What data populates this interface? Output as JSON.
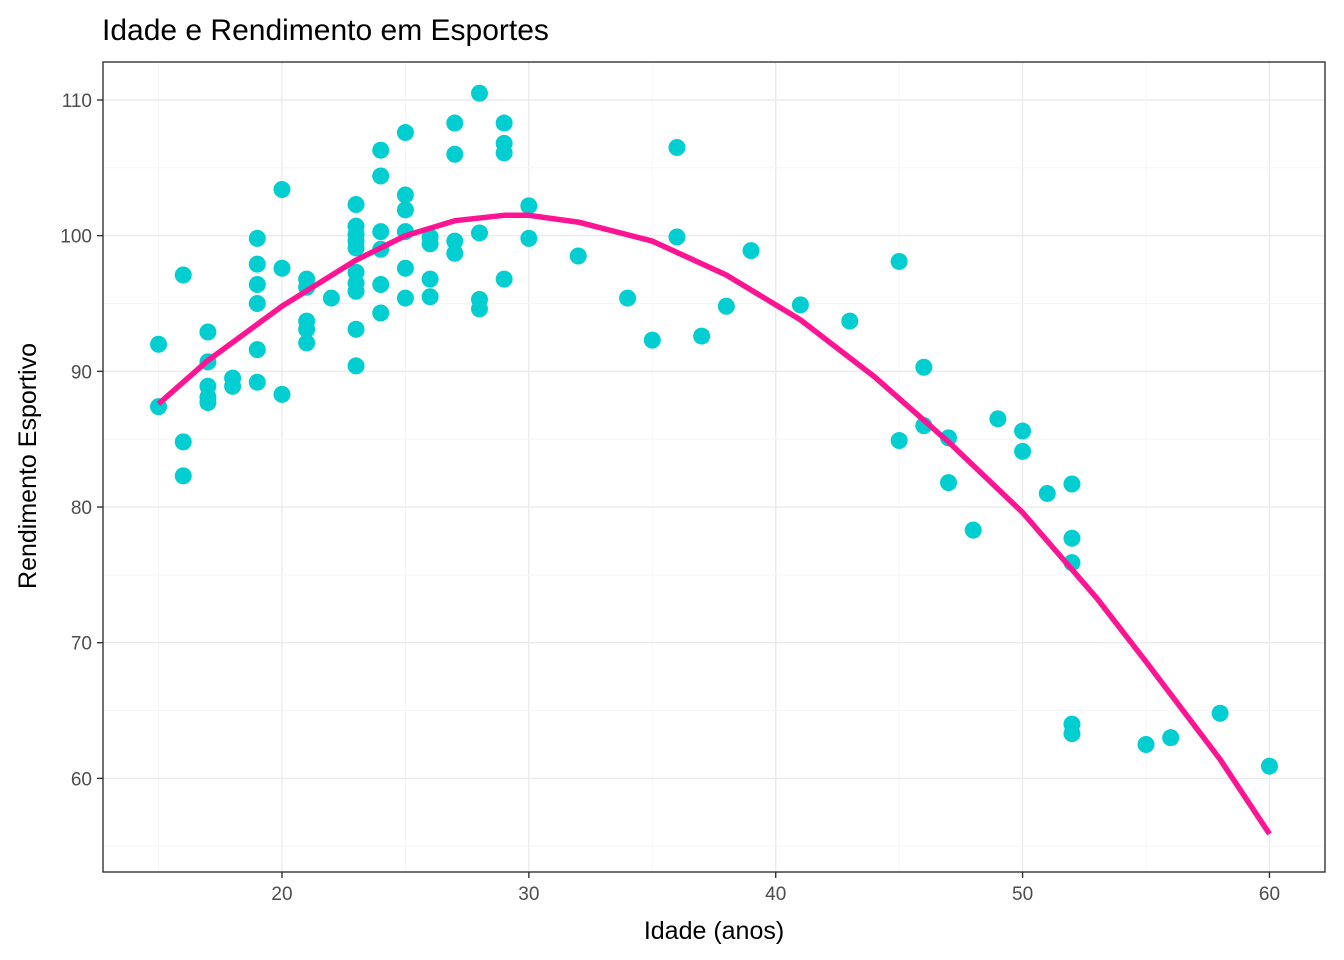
{
  "chart_data": {
    "type": "scatter",
    "title": "Idade e Rendimento em Esportes",
    "xlabel": "Idade (anos)",
    "ylabel": "Rendimento Esportivo",
    "xlim": [
      12.75,
      62.25
    ],
    "ylim": [
      53.1,
      112.8
    ],
    "x_ticks": [
      20,
      30,
      40,
      50,
      60
    ],
    "y_ticks": [
      60,
      70,
      80,
      90,
      100,
      110
    ],
    "x_tick_labels": [
      "20",
      "30",
      "40",
      "50",
      "60"
    ],
    "y_tick_labels": [
      "60",
      "70",
      "80",
      "90",
      "100",
      "110"
    ],
    "grid": true,
    "legend": "none",
    "point_color": "#00CED1",
    "line_color": "#FF1493",
    "series": [
      {
        "type": "scatter",
        "points": [
          [
            15,
            92.0
          ],
          [
            15,
            87.4
          ],
          [
            16,
            97.1
          ],
          [
            16,
            84.8
          ],
          [
            16,
            82.3
          ],
          [
            17,
            92.9
          ],
          [
            17,
            90.7
          ],
          [
            17,
            88.9
          ],
          [
            17,
            88.1
          ],
          [
            17,
            87.7
          ],
          [
            18,
            89.5
          ],
          [
            18,
            88.9
          ],
          [
            19,
            99.8
          ],
          [
            19,
            97.9
          ],
          [
            19,
            96.4
          ],
          [
            19,
            95.0
          ],
          [
            19,
            91.6
          ],
          [
            19,
            89.2
          ],
          [
            20,
            103.4
          ],
          [
            20,
            97.6
          ],
          [
            20,
            88.3
          ],
          [
            21,
            96.8
          ],
          [
            21,
            96.2
          ],
          [
            21,
            93.7
          ],
          [
            21,
            93.1
          ],
          [
            21,
            92.1
          ],
          [
            22,
            95.4
          ],
          [
            23,
            102.3
          ],
          [
            23,
            100.7
          ],
          [
            23,
            100.1
          ],
          [
            23,
            99.6
          ],
          [
            23,
            99.1
          ],
          [
            23,
            97.3
          ],
          [
            23,
            96.5
          ],
          [
            23,
            95.9
          ],
          [
            23,
            93.1
          ],
          [
            23,
            90.4
          ],
          [
            24,
            106.3
          ],
          [
            24,
            104.4
          ],
          [
            24,
            100.3
          ],
          [
            24,
            99.0
          ],
          [
            24,
            96.4
          ],
          [
            24,
            94.3
          ],
          [
            25,
            107.6
          ],
          [
            25,
            103.0
          ],
          [
            25,
            101.9
          ],
          [
            25,
            100.3
          ],
          [
            25,
            97.6
          ],
          [
            25,
            95.4
          ],
          [
            26,
            99.9
          ],
          [
            26,
            99.4
          ],
          [
            26,
            96.8
          ],
          [
            26,
            95.5
          ],
          [
            27,
            108.3
          ],
          [
            27,
            106.0
          ],
          [
            27,
            99.6
          ],
          [
            27,
            98.7
          ],
          [
            28,
            110.5
          ],
          [
            28,
            100.2
          ],
          [
            28,
            95.3
          ],
          [
            28,
            94.6
          ],
          [
            29,
            108.3
          ],
          [
            29,
            106.8
          ],
          [
            29,
            106.1
          ],
          [
            29,
            96.8
          ],
          [
            30,
            102.2
          ],
          [
            30,
            99.8
          ],
          [
            32,
            98.5
          ],
          [
            34,
            95.4
          ],
          [
            35,
            92.3
          ],
          [
            36,
            106.5
          ],
          [
            36,
            99.9
          ],
          [
            37,
            92.6
          ],
          [
            38,
            94.8
          ],
          [
            39,
            98.9
          ],
          [
            41,
            94.9
          ],
          [
            43,
            93.7
          ],
          [
            45,
            98.1
          ],
          [
            45,
            84.9
          ],
          [
            46,
            90.3
          ],
          [
            46,
            86.0
          ],
          [
            47,
            85.1
          ],
          [
            47,
            81.8
          ],
          [
            48,
            78.3
          ],
          [
            49,
            86.5
          ],
          [
            50,
            85.6
          ],
          [
            50,
            84.1
          ],
          [
            51,
            81.0
          ],
          [
            52,
            81.7
          ],
          [
            52,
            77.7
          ],
          [
            52,
            75.9
          ],
          [
            52,
            64.0
          ],
          [
            52,
            63.3
          ],
          [
            55,
            62.5
          ],
          [
            56,
            63.0
          ],
          [
            58,
            64.8
          ],
          [
            60,
            60.9
          ]
        ]
      },
      {
        "type": "line",
        "x": [
          15,
          17,
          20,
          23,
          25,
          27,
          29,
          30,
          32,
          35,
          38,
          41,
          44,
          47,
          50,
          53,
          55,
          58,
          60
        ],
        "y": [
          87.6,
          90.8,
          94.8,
          98.2,
          100.0,
          101.1,
          101.5,
          101.5,
          101.0,
          99.6,
          97.1,
          93.8,
          89.6,
          84.8,
          79.6,
          73.3,
          68.6,
          61.4,
          55.9
        ]
      }
    ]
  }
}
